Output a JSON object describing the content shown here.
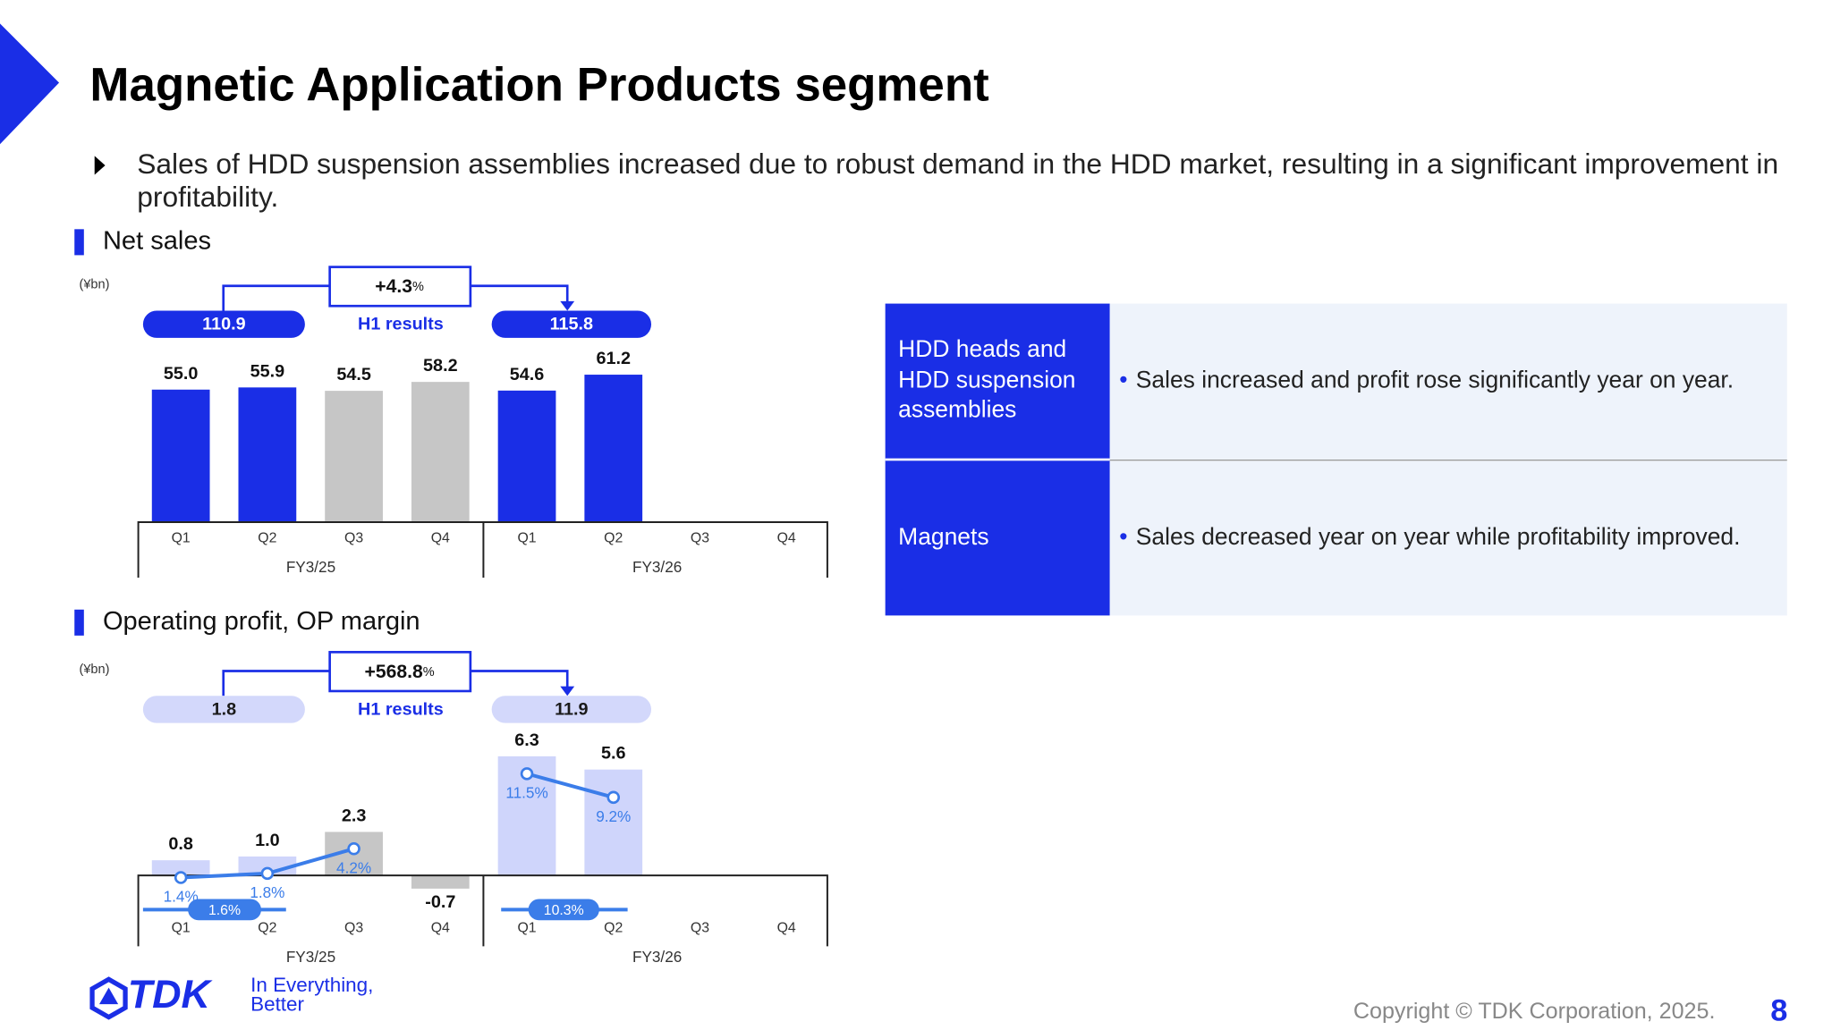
{
  "header": {
    "title": "Magnetic Application Products segment",
    "bullet": "Sales of HDD suspension assemblies increased due to robust demand in the HDD market, resulting in a significant improvement in profitability."
  },
  "chart_data": [
    {
      "type": "bar",
      "title": "Net sales",
      "unit": "(¥bn)",
      "categories": [
        "Q1",
        "Q2",
        "Q3",
        "Q4",
        "Q1",
        "Q2",
        "Q3",
        "Q4"
      ],
      "groups": [
        "FY3/25",
        "FY3/26"
      ],
      "values": [
        55.0,
        55.9,
        54.5,
        58.2,
        54.6,
        61.2,
        null,
        null
      ],
      "value_labels": [
        "55.0",
        "55.9",
        "54.5",
        "58.2",
        "54.6",
        "61.2",
        null,
        null
      ],
      "colors": [
        "#1a2ee6",
        "#1a2ee6",
        "#c6c6c6",
        "#c6c6c6",
        "#1a2ee6",
        "#1a2ee6",
        null,
        null
      ],
      "h1": {
        "label": "H1 results",
        "values": [
          110.9,
          115.8
        ],
        "change": "+4.3",
        "change_unit": "%"
      }
    },
    {
      "type": "bar",
      "title": "Operating profit, OP margin",
      "unit": "(¥bn)",
      "categories": [
        "Q1",
        "Q2",
        "Q3",
        "Q4",
        "Q1",
        "Q2",
        "Q3",
        "Q4"
      ],
      "groups": [
        "FY3/25",
        "FY3/26"
      ],
      "values": [
        0.8,
        1.0,
        2.3,
        -0.7,
        6.3,
        5.6,
        null,
        null
      ],
      "value_labels": [
        "0.8",
        "1.0",
        "2.3",
        "-0.7",
        "6.3",
        "5.6",
        null,
        null
      ],
      "colors": [
        "#cfd5fb",
        "#cfd5fb",
        "#c6c6c6",
        "#c6c6c6",
        "#cfd5fb",
        "#cfd5fb",
        null,
        null
      ],
      "margin": {
        "color": "#3b7de9",
        "values": [
          1.4,
          1.8,
          4.2,
          null,
          11.5,
          9.2,
          null,
          null
        ],
        "value_labels": [
          "1.4%",
          "1.8%",
          "4.2%",
          null,
          "11.5%",
          "9.2%",
          null,
          null
        ],
        "h1_values": [
          1.6,
          10.3
        ],
        "h1_labels": [
          "1.6%",
          "10.3%"
        ]
      },
      "h1": {
        "label": "H1 results",
        "values": [
          1.8,
          11.9
        ],
        "change": "+568.8",
        "change_unit": "%"
      }
    }
  ],
  "table": {
    "rows": [
      [
        "HDD heads and HDD suspension assemblies",
        "Sales increased and profit rose significantly year on year."
      ],
      [
        "Magnets",
        "Sales decreased year on year while profitability improved."
      ]
    ]
  },
  "footer": {
    "logo": "TDK",
    "tagline": [
      "In Everything,",
      "Better"
    ],
    "copyright": "Copyright © TDK Corporation, 2025.",
    "page": 8
  }
}
